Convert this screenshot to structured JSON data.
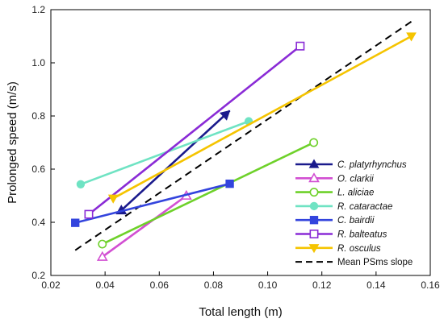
{
  "chart_data": {
    "type": "line",
    "xlabel": "Total length (m)",
    "ylabel": "Prolonged speed  (m/s)",
    "xlim": [
      0.02,
      0.16
    ],
    "ylim": [
      0.2,
      1.2
    ],
    "x_ticks": [
      "0.02",
      "0.04",
      "0.06",
      "0.08",
      "0.10",
      "0.12",
      "0.14",
      "0.16"
    ],
    "y_ticks": [
      "0.2",
      "0.4",
      "0.6",
      "0.8",
      "1.0",
      "1.2"
    ],
    "grid": false,
    "legend_position": "bottom-right",
    "series": [
      {
        "name": "C. platyrhynchus",
        "color": "#1a1a8c",
        "marker": "triangle-up-filled",
        "points": [
          [
            0.046,
            0.445
          ],
          [
            0.086,
            0.82
          ]
        ],
        "marker_at": "end-arrow"
      },
      {
        "name": "O. clarkii",
        "color": "#d24fd2",
        "marker": "triangle-up-open",
        "points": [
          [
            0.039,
            0.27
          ],
          [
            0.07,
            0.5
          ]
        ]
      },
      {
        "name": "L. aliciae",
        "color": "#6ed12a",
        "marker": "circle-open",
        "points": [
          [
            0.039,
            0.318
          ],
          [
            0.117,
            0.7
          ]
        ]
      },
      {
        "name": "R. cataractae",
        "color": "#6fe3c3",
        "marker": "circle-filled",
        "points": [
          [
            0.031,
            0.543
          ],
          [
            0.093,
            0.78
          ]
        ]
      },
      {
        "name": "C. bairdii",
        "color": "#3344dd",
        "marker": "square-filled",
        "points": [
          [
            0.029,
            0.398
          ],
          [
            0.086,
            0.545
          ]
        ]
      },
      {
        "name": "R. balteatus",
        "color": "#8a2bd6",
        "marker": "square-open",
        "points": [
          [
            0.034,
            0.43
          ],
          [
            0.112,
            1.063
          ]
        ]
      },
      {
        "name": "R. osculus",
        "color": "#f5c400",
        "marker": "triangle-down-filled",
        "points": [
          [
            0.043,
            0.49
          ],
          [
            0.153,
            1.1
          ]
        ]
      }
    ],
    "reference_line": {
      "name": "Mean PSms slope",
      "color": "#000000",
      "style": "dashed",
      "points": [
        [
          0.029,
          0.295
        ],
        [
          0.153,
          1.155
        ]
      ]
    }
  }
}
